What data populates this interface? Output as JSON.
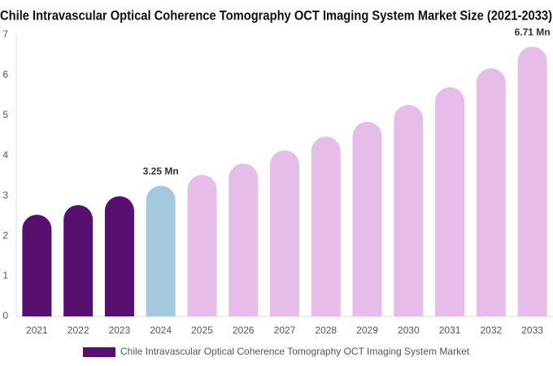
{
  "chart_data": {
    "type": "bar",
    "title": "Chile Intravascular Optical Coherence Tomography OCT Imaging System Market Size (2021-2033)",
    "categories": [
      "2021",
      "2022",
      "2023",
      "2024",
      "2025",
      "2026",
      "2027",
      "2028",
      "2029",
      "2030",
      "2031",
      "2032",
      "2033"
    ],
    "series": [
      {
        "name": "Chile Intravascular Optical Coherence Tomography OCT Imaging System Market",
        "color": "#581070",
        "colors": [
          "#581070",
          "#581070",
          "#581070",
          "#a5c9dc",
          "#e6bde8",
          "#e6bde8",
          "#e6bde8",
          "#e6bde8",
          "#e6bde8",
          "#e6bde8",
          "#e6bde8",
          "#e6bde8",
          "#e6bde8"
        ],
        "values": [
          2.53,
          2.77,
          2.99,
          3.25,
          3.52,
          3.8,
          4.13,
          4.47,
          4.84,
          5.26,
          5.7,
          6.17,
          6.71
        ],
        "value_labels": [
          null,
          null,
          null,
          "3.25 Mn",
          null,
          null,
          null,
          null,
          null,
          null,
          null,
          null,
          "6.71 Mn"
        ]
      }
    ],
    "ylim": [
      0,
      7
    ],
    "yticks": [
      0,
      1,
      2,
      3,
      4,
      5,
      6,
      7
    ],
    "grid": false
  }
}
